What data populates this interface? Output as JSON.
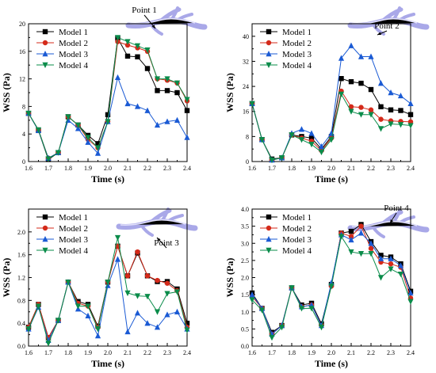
{
  "chart_data": [
    {
      "type": "line",
      "annotation": "Point 1",
      "xlabel": "Time (s)",
      "ylabel": "WSS (Pa)",
      "xlim": [
        1.6,
        2.4
      ],
      "ylim": [
        0,
        20
      ],
      "xticks": [
        "1.6",
        "1.7",
        "1.8",
        "1.9",
        "2.0",
        "2.1",
        "2.2",
        "2.3",
        "2.4"
      ],
      "yticks": [
        "0",
        "4",
        "8",
        "12",
        "16",
        "20"
      ],
      "legend_position": "top-left",
      "x": [
        1.6,
        1.65,
        1.7,
        1.75,
        1.8,
        1.85,
        1.9,
        1.95,
        2.0,
        2.05,
        2.1,
        2.15,
        2.2,
        2.25,
        2.3,
        2.35,
        2.4
      ],
      "series": [
        {
          "name": "Model 1",
          "values": [
            7.0,
            4.5,
            0.3,
            1.3,
            6.5,
            5.3,
            3.8,
            2.6,
            6.8,
            17.9,
            15.3,
            15.2,
            13.5,
            10.3,
            10.3,
            10.0,
            7.4
          ]
        },
        {
          "name": "Model 2",
          "values": [
            7.0,
            4.6,
            0.5,
            1.3,
            6.5,
            5.3,
            3.2,
            2.0,
            5.8,
            17.4,
            16.9,
            16.5,
            16.0,
            12.0,
            11.8,
            11.4,
            8.8
          ]
        },
        {
          "name": "Model 3",
          "values": [
            7.0,
            4.5,
            0.5,
            1.3,
            6.0,
            4.8,
            2.8,
            1.2,
            5.8,
            12.2,
            8.4,
            8.0,
            7.4,
            5.3,
            5.8,
            6.0,
            3.5
          ]
        },
        {
          "name": "Model 4",
          "values": [
            7.0,
            4.6,
            0.4,
            1.3,
            6.5,
            5.3,
            3.5,
            2.0,
            5.8,
            18.0,
            17.4,
            16.8,
            16.2,
            12.0,
            12.0,
            11.4,
            9.0
          ]
        }
      ]
    },
    {
      "type": "line",
      "annotation": "Point 2",
      "xlabel": "Time (s)",
      "ylabel": "WSS (Pa)",
      "xlim": [
        1.6,
        2.4
      ],
      "ylim": [
        0,
        44
      ],
      "xticks": [
        "1.6",
        "1.7",
        "1.8",
        "1.9",
        "2.0",
        "2.1",
        "2.2",
        "2.3",
        "2.4"
      ],
      "yticks": [
        "0",
        "8",
        "16",
        "24",
        "32",
        "40"
      ],
      "legend_position": "top-left",
      "x": [
        1.6,
        1.65,
        1.7,
        1.75,
        1.8,
        1.85,
        1.9,
        1.95,
        2.0,
        2.05,
        2.1,
        2.15,
        2.2,
        2.25,
        2.3,
        2.35,
        2.4
      ],
      "series": [
        {
          "name": "Model 1",
          "values": [
            18.5,
            7.0,
            0.8,
            1.2,
            8.5,
            8.0,
            7.5,
            4.0,
            8.0,
            26.5,
            25.5,
            25.0,
            23.0,
            17.5,
            16.5,
            16.3,
            15.0
          ]
        },
        {
          "name": "Model 2",
          "values": [
            18.5,
            7.0,
            0.5,
            1.2,
            8.5,
            7.5,
            6.5,
            3.5,
            7.5,
            22.5,
            17.5,
            17.3,
            16.5,
            13.5,
            13.0,
            12.8,
            12.7
          ]
        },
        {
          "name": "Model 3",
          "values": [
            18.5,
            7.0,
            0.5,
            1.2,
            9.0,
            10.3,
            9.0,
            4.8,
            9.0,
            33.0,
            37.0,
            33.5,
            33.5,
            25.0,
            22.0,
            21.0,
            18.5
          ]
        },
        {
          "name": "Model 4",
          "values": [
            18.5,
            7.0,
            0.5,
            1.2,
            8.5,
            7.0,
            5.5,
            3.0,
            7.0,
            21.5,
            16.0,
            15.0,
            15.0,
            10.5,
            12.0,
            11.8,
            11.5
          ]
        }
      ]
    },
    {
      "type": "line",
      "annotation": "Point 3",
      "xlabel": "Time (s)",
      "ylabel": "WSS (Pa)",
      "xlim": [
        1.6,
        2.4
      ],
      "ylim": [
        0,
        2.4
      ],
      "xticks": [
        "1.6",
        "1.7",
        "1.8",
        "1.9",
        "2.0",
        "2.1",
        "2.2",
        "2.3",
        "2.4"
      ],
      "yticks": [
        "0.0",
        "0.4",
        "0.8",
        "1.2",
        "1.6",
        "2.0"
      ],
      "legend_position": "top-left",
      "x": [
        1.6,
        1.65,
        1.7,
        1.75,
        1.8,
        1.85,
        1.9,
        1.95,
        2.0,
        2.05,
        2.1,
        2.15,
        2.2,
        2.25,
        2.3,
        2.35,
        2.4
      ],
      "series": [
        {
          "name": "Model 1",
          "values": [
            0.33,
            0.73,
            0.15,
            0.45,
            1.12,
            0.78,
            0.73,
            0.35,
            1.12,
            1.75,
            1.23,
            1.63,
            1.23,
            1.13,
            1.13,
            1.0,
            0.4
          ]
        },
        {
          "name": "Model 2",
          "values": [
            0.33,
            0.73,
            0.15,
            0.45,
            1.12,
            0.75,
            0.7,
            0.33,
            1.12,
            1.75,
            1.23,
            1.65,
            1.23,
            1.15,
            1.1,
            0.97,
            0.33
          ]
        },
        {
          "name": "Model 3",
          "values": [
            0.3,
            0.68,
            0.1,
            0.45,
            1.12,
            0.65,
            0.53,
            0.18,
            1.06,
            1.52,
            0.25,
            0.58,
            0.4,
            0.33,
            0.55,
            0.6,
            0.3
          ]
        },
        {
          "name": "Model 4",
          "values": [
            0.3,
            0.7,
            0.05,
            0.45,
            1.12,
            0.7,
            0.7,
            0.3,
            1.12,
            1.9,
            0.93,
            0.88,
            0.87,
            0.6,
            0.92,
            0.95,
            0.28
          ]
        }
      ]
    },
    {
      "type": "line",
      "annotation": "Point 4",
      "xlabel": "Time (s)",
      "ylabel": "WSS (Pa)",
      "xlim": [
        1.6,
        2.4
      ],
      "ylim": [
        0,
        4.0
      ],
      "xticks": [
        "1.6",
        "1.7",
        "1.8",
        "1.9",
        "2.0",
        "2.1",
        "2.2",
        "2.3",
        "2.4"
      ],
      "yticks": [
        "0.0",
        "0.5",
        "1.0",
        "1.5",
        "2.0",
        "2.5",
        "3.0",
        "3.5",
        "4.0"
      ],
      "legend_position": "top-left",
      "x": [
        1.6,
        1.65,
        1.7,
        1.75,
        1.8,
        1.85,
        1.9,
        1.95,
        2.0,
        2.05,
        2.1,
        2.15,
        2.2,
        2.25,
        2.3,
        2.35,
        2.4
      ],
      "series": [
        {
          "name": "Model 1",
          "values": [
            1.55,
            1.1,
            0.4,
            0.6,
            1.7,
            1.2,
            1.25,
            0.65,
            1.8,
            3.3,
            3.35,
            3.55,
            3.05,
            2.65,
            2.6,
            2.4,
            1.6
          ]
        },
        {
          "name": "Model 2",
          "values": [
            1.45,
            1.1,
            0.35,
            0.6,
            1.7,
            1.15,
            1.2,
            0.6,
            1.75,
            3.3,
            3.2,
            3.5,
            2.85,
            2.45,
            2.4,
            2.3,
            1.4
          ]
        },
        {
          "name": "Model 3",
          "values": [
            1.5,
            1.1,
            0.35,
            0.6,
            1.7,
            1.15,
            1.2,
            0.6,
            1.85,
            3.25,
            3.1,
            3.3,
            3.0,
            2.55,
            2.55,
            2.35,
            1.55
          ]
        },
        {
          "name": "Model 4",
          "values": [
            1.35,
            1.05,
            0.25,
            0.55,
            1.7,
            1.1,
            1.1,
            0.55,
            1.75,
            3.2,
            2.75,
            2.7,
            2.7,
            2.0,
            2.25,
            2.1,
            1.3
          ]
        }
      ]
    }
  ],
  "series_style": [
    {
      "color": "#000000",
      "marker": "square"
    },
    {
      "color": "#d42a1a",
      "marker": "circle"
    },
    {
      "color": "#1a5ad4",
      "marker": "triangle-up"
    },
    {
      "color": "#0a8c4a",
      "marker": "triangle-down"
    }
  ],
  "vessel_color": "#a9a8e8"
}
